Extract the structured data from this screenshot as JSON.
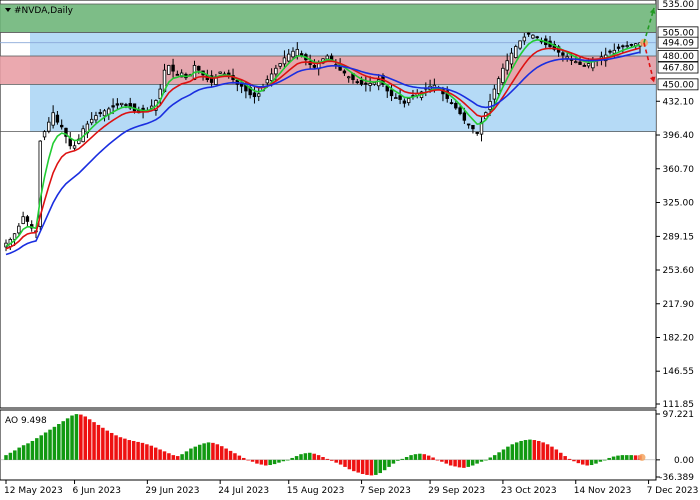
{
  "symbol_label": "#NVDA,Daily",
  "ao_label": "AO 9.498",
  "colors": {
    "resistance_zone": "#6fb67a",
    "support_zone": "#e9a0a6",
    "range_zone": "#a8d4f5",
    "ema_fast": "#22cc33",
    "ema_mid": "#dd1111",
    "ema_slow": "#1a2ee0",
    "candle": "#000000",
    "ao_up": "#119911",
    "ao_down": "#ee1111",
    "arrow_up": "#229922",
    "arrow_down": "#dd1111",
    "forecast_marker": "#f4a460"
  },
  "chart_data": [
    {
      "type": "candlestick",
      "title": "#NVDA,Daily",
      "ylim": [
        111.85,
        535.0
      ],
      "y_ticks": [
        "111.85",
        "146.55",
        "182.20",
        "217.90",
        "253.60",
        "289.15",
        "325.00",
        "360.70",
        "396.40",
        "432.10",
        "467.80",
        "494.09",
        "505.00",
        "535.00"
      ],
      "price_labels": [
        {
          "label": "535.00",
          "value": 535.0,
          "highlight": false
        },
        {
          "label": "505.00",
          "value": 505.0,
          "highlight": false
        },
        {
          "label": "494.09",
          "value": 494.09,
          "highlight": true
        },
        {
          "label": "480.00",
          "value": 480.0,
          "highlight": false
        },
        {
          "label": "467.80",
          "value": 467.8,
          "highlight": false
        },
        {
          "label": "450.00",
          "value": 450.0,
          "highlight": false
        }
      ],
      "x_ticks": [
        "12 May 2023",
        "6 Jun 2023",
        "29 Jun 2023",
        "24 Jul 2023",
        "15 Aug 2023",
        "7 Sep 2023",
        "29 Sep 2023",
        "23 Oct 2023",
        "14 Nov 2023",
        "7 Dec 2023"
      ],
      "x_tick_index": [
        0,
        16,
        33,
        50,
        66,
        83,
        99,
        116,
        133,
        150
      ],
      "zones": [
        {
          "name": "resistance",
          "from": 505.0,
          "to": 535.0
        },
        {
          "name": "support",
          "from": 450.0,
          "to": 480.0
        },
        {
          "name": "range",
          "from": 400.0,
          "to": 505.0
        }
      ],
      "closes": [
        282,
        286,
        292,
        300,
        310,
        305,
        298,
        295,
        390,
        400,
        410,
        420,
        410,
        405,
        395,
        385,
        385,
        392,
        403,
        408,
        413,
        417,
        419,
        422,
        424,
        426,
        428,
        430,
        428,
        425,
        422,
        420,
        421,
        422,
        427,
        433,
        445,
        465,
        470,
        464,
        460,
        462,
        457,
        460,
        470,
        465,
        460,
        455,
        452,
        458,
        463,
        461,
        459,
        455,
        450,
        448,
        443,
        439,
        437,
        440,
        447,
        455,
        461,
        467,
        472,
        478,
        482,
        485,
        487,
        480,
        476,
        471,
        468,
        472,
        477,
        480,
        475,
        470,
        465,
        462,
        458,
        455,
        452,
        450,
        450,
        451,
        452,
        455,
        450,
        443,
        438,
        436,
        434,
        430,
        435,
        438,
        440,
        442,
        445,
        448,
        449,
        446,
        440,
        435,
        430,
        425,
        419,
        412,
        407,
        403,
        398,
        410,
        420,
        432,
        445,
        456,
        467,
        475,
        483,
        490,
        496,
        500,
        503,
        502,
        500,
        495,
        492,
        490,
        487,
        484,
        481,
        479,
        476,
        474,
        471,
        470,
        472,
        475,
        477,
        479,
        481,
        484,
        486,
        488,
        490,
        491,
        492,
        493,
        494
      ],
      "candle_range": 16,
      "moving_averages": [
        {
          "name": "",
          "role": "ema_fast",
          "period": 5
        },
        {
          "name": "",
          "role": "ema_mid",
          "period": 10
        },
        {
          "name": "",
          "role": "ema_slow",
          "period": 20
        }
      ],
      "forecast": [
        {
          "direction": "up",
          "target": 535.0
        },
        {
          "direction": "down",
          "target": 450.0
        }
      ],
      "grid": false,
      "legend": "none"
    },
    {
      "type": "bar",
      "title": "AO 9.498",
      "indicator": "AO",
      "current_value": 9.498,
      "ylim": [
        -36.389,
        97.221
      ],
      "y_ticks": [
        "97.221",
        "0.00",
        "-36.389"
      ],
      "values": [
        10,
        15,
        20,
        26,
        31,
        35,
        40,
        46,
        52,
        58,
        64,
        70,
        76,
        82,
        88,
        94,
        97,
        96,
        92,
        86,
        80,
        74,
        68,
        62,
        57,
        52,
        48,
        45,
        42,
        40,
        38,
        36,
        33,
        30,
        26,
        22,
        18,
        14,
        10,
        8,
        12,
        18,
        24,
        28,
        32,
        35,
        37,
        36,
        33,
        29,
        24,
        19,
        14,
        9,
        4,
        0,
        -4,
        -8,
        -10,
        -12,
        -11,
        -9,
        -6,
        -3,
        0,
        4,
        8,
        12,
        14,
        15,
        13,
        10,
        6,
        2,
        -2,
        -6,
        -10,
        -15,
        -20,
        -24,
        -27,
        -30,
        -32,
        -33,
        -32,
        -28,
        -22,
        -15,
        -8,
        -2,
        2,
        6,
        10,
        12,
        13,
        12,
        9,
        5,
        0,
        -4,
        -8,
        -12,
        -14,
        -16,
        -17,
        -15,
        -12,
        -8,
        -4,
        0,
        5,
        10,
        16,
        22,
        28,
        33,
        37,
        40,
        42,
        43,
        42,
        40,
        37,
        33,
        28,
        22,
        15,
        8,
        2,
        -3,
        -7,
        -10,
        -12,
        -11,
        -8,
        -4,
        0,
        4,
        7,
        9,
        10,
        10,
        10,
        9.5,
        9.498
      ]
    }
  ]
}
